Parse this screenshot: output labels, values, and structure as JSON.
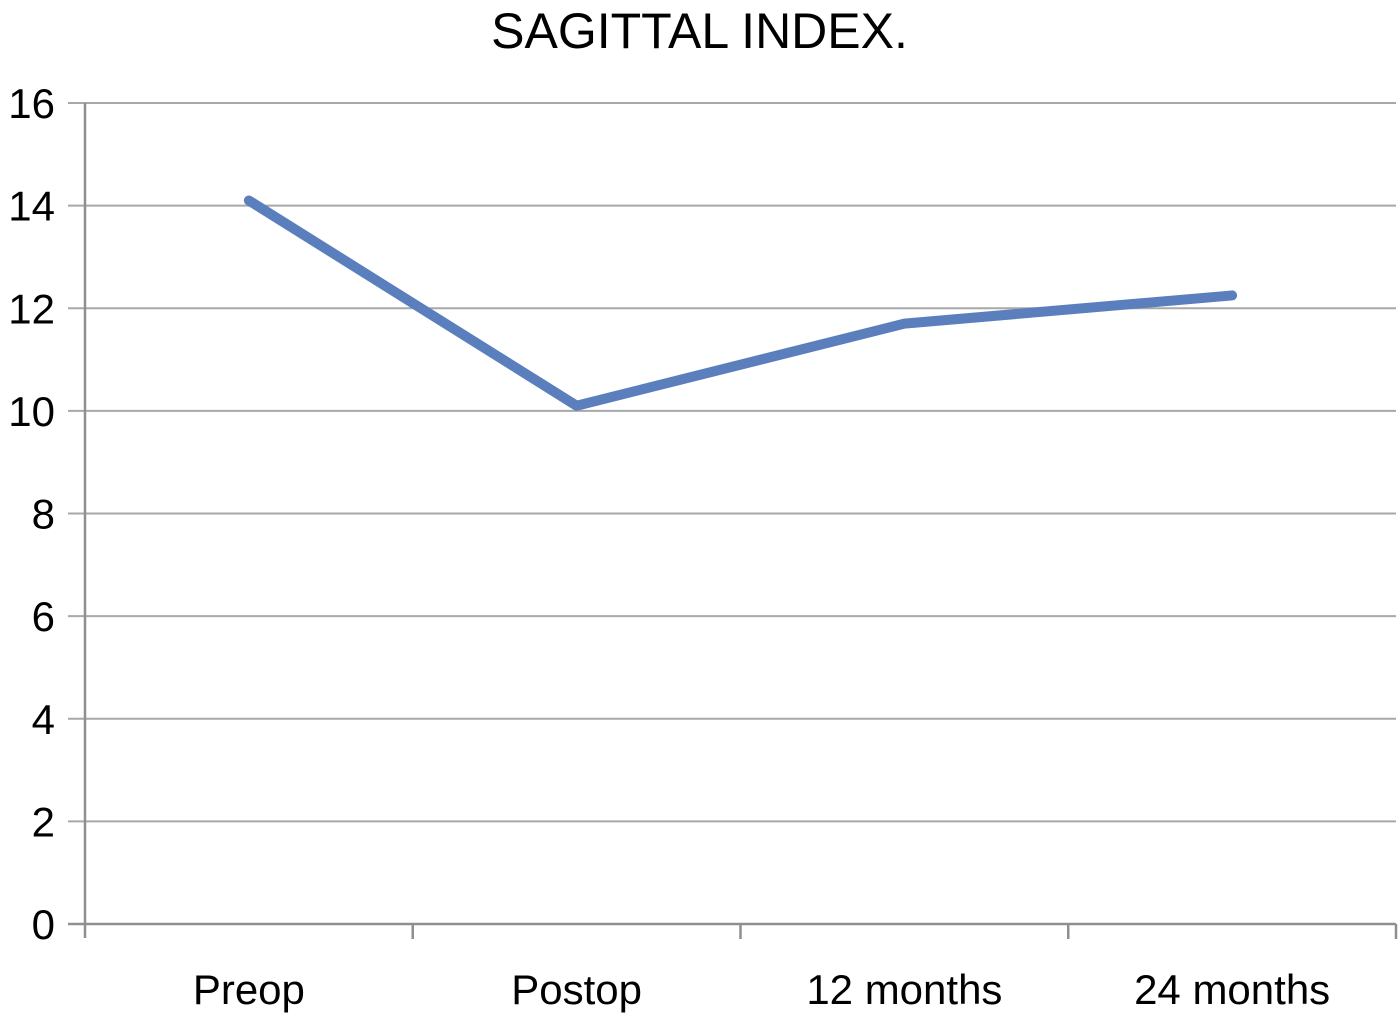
{
  "title": "SAGITTAL INDEX.",
  "chart_data": {
    "type": "line",
    "title": "SAGITTAL INDEX.",
    "categories": [
      "Preop",
      "Postop",
      "12 months",
      "24 months"
    ],
    "values": [
      14.1,
      10.1,
      11.7,
      12.25
    ],
    "xlabel": "",
    "ylabel": "",
    "ylim": [
      0,
      16
    ],
    "ytick_step": 2,
    "yticks": [
      0,
      2,
      4,
      6,
      8,
      10,
      12,
      14,
      16
    ],
    "grid": true,
    "legend_position": "none",
    "colors": {
      "line": "#5B7EBD",
      "gridline": "#A8A8A8",
      "axis": "#8F8F8F",
      "text": "#000000",
      "background": "#FFFFFF"
    }
  }
}
